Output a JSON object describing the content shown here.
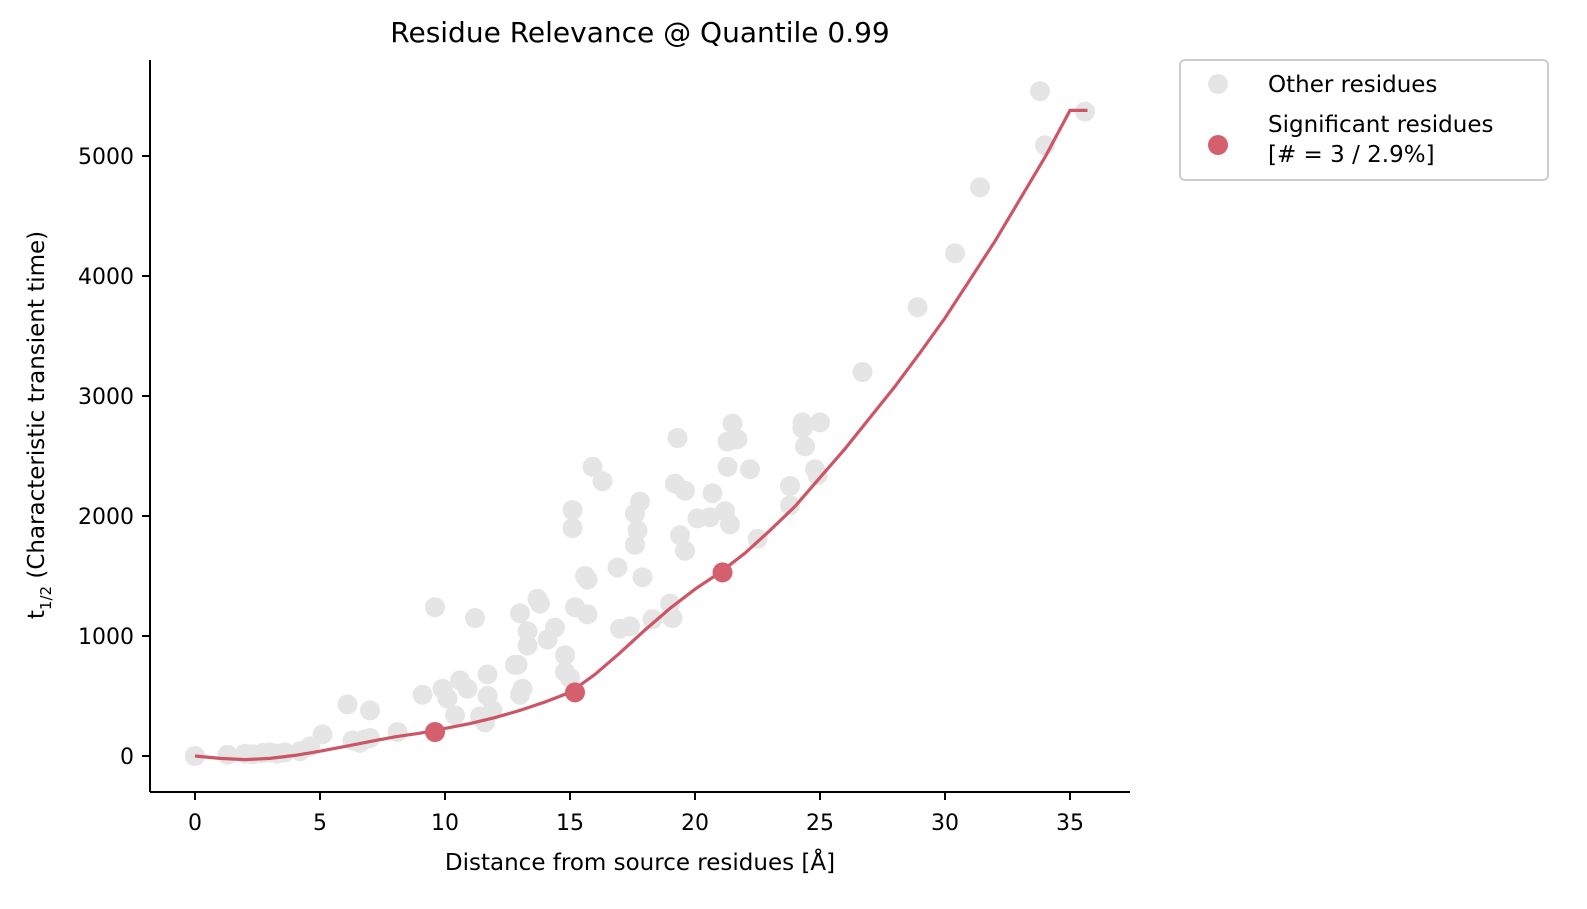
{
  "chart_data": {
    "type": "scatter",
    "title": "Residue Relevance @ Quantile 0.99",
    "xlabel": "Distance from source residues [Å]",
    "ylabel_main": "t",
    "ylabel_sub": "1/2",
    "ylabel_rest": " (Characteristic transient time)",
    "xlim": [
      -1.8,
      37.4
    ],
    "ylim": [
      -300,
      5800
    ],
    "xticks": [
      0,
      5,
      10,
      15,
      20,
      25,
      30,
      35
    ],
    "yticks": [
      0,
      1000,
      2000,
      3000,
      4000,
      5000
    ],
    "colors": {
      "other": "#e5e5e5",
      "significant": "#d4606e",
      "curve": "#cc5566",
      "axis": "#000000",
      "legend_border": "#cccccc"
    },
    "legend": {
      "placement": "outside-top-right",
      "other_label": "Other residues",
      "significant_label_line1": "Significant residues",
      "significant_label_line2": "[# = 3 / 2.9%]"
    },
    "series": [
      {
        "name": "Other residues",
        "points": [
          [
            0.0,
            0
          ],
          [
            1.3,
            10
          ],
          [
            2.0,
            20
          ],
          [
            2.3,
            15
          ],
          [
            2.7,
            25
          ],
          [
            3.0,
            30
          ],
          [
            3.3,
            20
          ],
          [
            3.6,
            30
          ],
          [
            4.2,
            40
          ],
          [
            4.6,
            80
          ],
          [
            5.1,
            180
          ],
          [
            6.1,
            430
          ],
          [
            6.3,
            130
          ],
          [
            6.6,
            110
          ],
          [
            6.8,
            140
          ],
          [
            7.0,
            380
          ],
          [
            7.0,
            150
          ],
          [
            8.1,
            200
          ],
          [
            9.1,
            510
          ],
          [
            9.6,
            1240
          ],
          [
            9.9,
            560
          ],
          [
            10.1,
            480
          ],
          [
            10.4,
            340
          ],
          [
            10.6,
            630
          ],
          [
            10.9,
            560
          ],
          [
            11.2,
            1150
          ],
          [
            11.4,
            330
          ],
          [
            11.6,
            280
          ],
          [
            11.7,
            680
          ],
          [
            11.7,
            500
          ],
          [
            11.9,
            380
          ],
          [
            12.8,
            760
          ],
          [
            12.9,
            760
          ],
          [
            13.0,
            1190
          ],
          [
            13.0,
            510
          ],
          [
            13.1,
            560
          ],
          [
            13.3,
            1040
          ],
          [
            13.3,
            920
          ],
          [
            13.7,
            1310
          ],
          [
            13.8,
            1270
          ],
          [
            14.1,
            970
          ],
          [
            14.4,
            1070
          ],
          [
            14.8,
            840
          ],
          [
            14.8,
            700
          ],
          [
            15.0,
            650
          ],
          [
            15.1,
            2050
          ],
          [
            15.1,
            1900
          ],
          [
            15.2,
            1240
          ],
          [
            15.6,
            1500
          ],
          [
            15.7,
            1180
          ],
          [
            15.7,
            1470
          ],
          [
            15.9,
            2410
          ],
          [
            16.3,
            2290
          ],
          [
            16.9,
            1570
          ],
          [
            17.0,
            1060
          ],
          [
            17.4,
            1080
          ],
          [
            17.6,
            2020
          ],
          [
            17.6,
            1760
          ],
          [
            17.7,
            1880
          ],
          [
            17.8,
            2120
          ],
          [
            17.9,
            1490
          ],
          [
            18.3,
            1140
          ],
          [
            19.0,
            1270
          ],
          [
            19.1,
            1150
          ],
          [
            19.2,
            2270
          ],
          [
            19.3,
            2650
          ],
          [
            19.4,
            1840
          ],
          [
            19.6,
            2210
          ],
          [
            19.6,
            1710
          ],
          [
            20.1,
            1980
          ],
          [
            20.7,
            2190
          ],
          [
            20.6,
            1990
          ],
          [
            21.2,
            2040
          ],
          [
            21.3,
            2410
          ],
          [
            21.3,
            2620
          ],
          [
            21.4,
            1930
          ],
          [
            21.5,
            2770
          ],
          [
            21.7,
            2640
          ],
          [
            22.2,
            2390
          ],
          [
            22.5,
            1810
          ],
          [
            23.8,
            2090
          ],
          [
            23.8,
            2250
          ],
          [
            24.3,
            2780
          ],
          [
            24.3,
            2730
          ],
          [
            24.4,
            2580
          ],
          [
            24.8,
            2390
          ],
          [
            24.9,
            2340
          ],
          [
            25.0,
            2780
          ],
          [
            26.7,
            3200
          ],
          [
            28.9,
            3740
          ],
          [
            30.4,
            4190
          ],
          [
            31.4,
            4740
          ],
          [
            33.8,
            5540
          ],
          [
            34.0,
            5090
          ],
          [
            35.6,
            5370
          ]
        ]
      },
      {
        "name": "Significant residues",
        "points": [
          [
            9.6,
            200
          ],
          [
            15.2,
            530
          ],
          [
            21.1,
            1530
          ]
        ]
      }
    ],
    "fit_curve": [
      [
        0.0,
        0
      ],
      [
        1.0,
        -20
      ],
      [
        2.0,
        -30
      ],
      [
        3.0,
        -20
      ],
      [
        4.0,
        5
      ],
      [
        5.0,
        40
      ],
      [
        6.0,
        80
      ],
      [
        7.0,
        120
      ],
      [
        8.0,
        160
      ],
      [
        9.0,
        190
      ],
      [
        10.0,
        230
      ],
      [
        11.0,
        270
      ],
      [
        12.0,
        320
      ],
      [
        13.0,
        380
      ],
      [
        14.0,
        450
      ],
      [
        15.0,
        530
      ],
      [
        16.0,
        680
      ],
      [
        17.0,
        860
      ],
      [
        18.0,
        1050
      ],
      [
        19.0,
        1230
      ],
      [
        20.0,
        1390
      ],
      [
        21.0,
        1530
      ],
      [
        22.0,
        1690
      ],
      [
        23.0,
        1880
      ],
      [
        24.0,
        2080
      ],
      [
        25.0,
        2320
      ],
      [
        26.0,
        2560
      ],
      [
        27.0,
        2820
      ],
      [
        28.0,
        3080
      ],
      [
        29.0,
        3360
      ],
      [
        30.0,
        3650
      ],
      [
        31.0,
        3970
      ],
      [
        32.0,
        4290
      ],
      [
        33.0,
        4640
      ],
      [
        34.0,
        4990
      ],
      [
        35.0,
        5380
      ],
      [
        35.7,
        5380
      ]
    ]
  }
}
